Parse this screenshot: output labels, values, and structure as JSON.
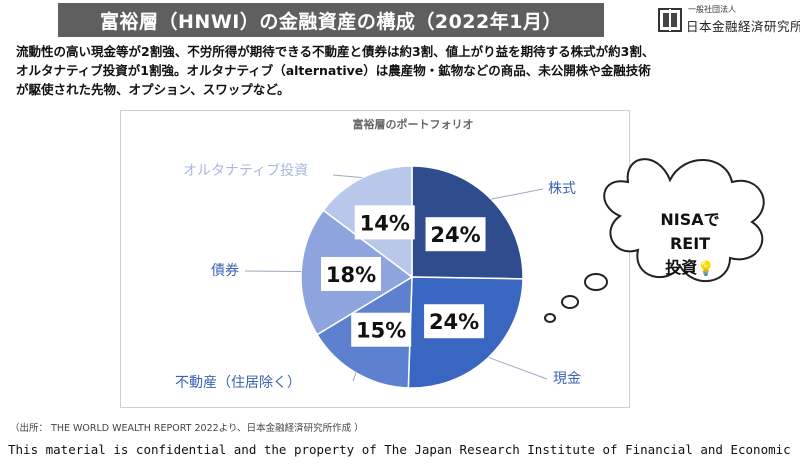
{
  "header": {
    "title": "富裕層（HNWI）の金融資産の構成（2022年1月）",
    "logo_small": "一般社団法人",
    "logo_main": "日本金融経済研究所"
  },
  "description": {
    "line1": "流動性の高い現金等が2割強、不労所得が期待できる不動産と債券は約3割、値上がり益を期待する株式が約3割、",
    "line2": "オルタナティブ投資が1割強。オルタナティブ（alternative）は農産物・鉱物などの商品、未公開株や金融技術",
    "line3": "が駆使された先物、オプション、スワップなど。"
  },
  "chart_data": {
    "type": "pie",
    "title": "富裕層のポートフォリオ",
    "slices": [
      {
        "label": "株式",
        "value": 24,
        "value_label": "24%",
        "color": "#2e4c8e"
      },
      {
        "label": "現金",
        "value": 24,
        "value_label": "24%",
        "color": "#3966c0"
      },
      {
        "label": "不動産（住居除く）",
        "value": 15,
        "value_label": "15%",
        "color": "#5d81cf"
      },
      {
        "label": "債券",
        "value": 18,
        "value_label": "18%",
        "color": "#8da5dc"
      },
      {
        "label": "オルタナティブ投資",
        "value": 14,
        "value_label": "14%",
        "color": "#b9c8ea"
      }
    ],
    "label_color": "#3c62b5",
    "alt_label_color": "#a7b8df"
  },
  "bubble": {
    "line1": "NISAで",
    "line2": "REIT",
    "line3": "投資"
  },
  "source": "（出所： THE WORLD WEALTH REPORT 2022より、日本金融経済研究所作成 ）",
  "footer": "This material is confidential and the property of The Japan Research Institute of Financial and Economic"
}
